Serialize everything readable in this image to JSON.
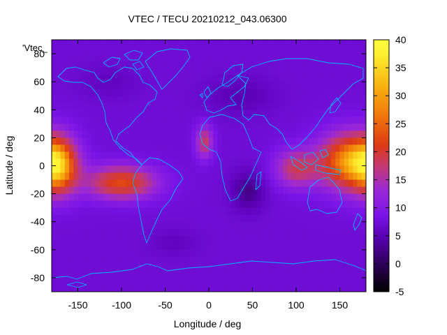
{
  "title": "VTEC / TECU 20210212_043.06300",
  "key_label": "'Vtec_",
  "xlabel": "Longitude / deg",
  "ylabel": "Latitude / deg",
  "colors": {
    "coastline": "#00b8ff",
    "palette": [
      "#000000",
      "#2a0050",
      "#5a00b4",
      "#7a14e6",
      "#9a28d8",
      "#c43a70",
      "#dc3a16",
      "#f0780a",
      "#f8b410",
      "#ffee30",
      "#ffff40"
    ]
  },
  "chart_data": {
    "type": "heatmap",
    "title": "VTEC / TECU 20210212_043.06300",
    "xlabel": "Longitude / deg",
    "ylabel": "Latitude / deg",
    "xlim": [
      -180,
      180
    ],
    "ylim": [
      -90,
      90
    ],
    "x_ticks": [
      -150,
      -100,
      -50,
      0,
      50,
      100,
      150
    ],
    "y_ticks": [
      -80,
      -60,
      -40,
      -20,
      0,
      20,
      40,
      60,
      80
    ],
    "colorbar": {
      "range": [
        -5,
        40
      ],
      "ticks": [
        -5,
        0,
        5,
        10,
        15,
        20,
        25,
        30,
        35,
        40
      ]
    },
    "background_value": 7,
    "features": [
      {
        "lon": -172,
        "lat": 0,
        "value": 26,
        "rlon": 22,
        "rlat": 20
      },
      {
        "lon": -100,
        "lat": -12,
        "value": 23,
        "rlon": 40,
        "rlat": 12
      },
      {
        "lon": -5,
        "lat": 17,
        "value": 18,
        "rlon": 10,
        "rlat": 12
      },
      {
        "lon": 160,
        "lat": 3,
        "value": 28,
        "rlon": 34,
        "rlat": 20
      },
      {
        "lon": 100,
        "lat": -2,
        "value": 18,
        "rlon": 25,
        "rlat": 14
      },
      {
        "lon": 45,
        "lat": -18,
        "value": 2,
        "rlon": 20,
        "rlat": 15
      },
      {
        "lon": 35,
        "lat": 50,
        "value": 4,
        "rlon": 40,
        "rlat": 14
      },
      {
        "lon": -115,
        "lat": 60,
        "value": 5,
        "rlon": 35,
        "rlat": 12
      },
      {
        "lon": -40,
        "lat": -55,
        "value": 5,
        "rlon": 30,
        "rlat": 10
      }
    ]
  }
}
